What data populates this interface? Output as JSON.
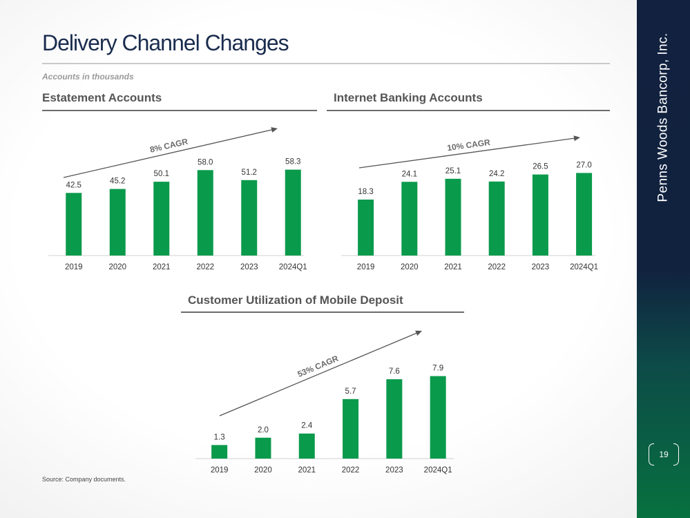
{
  "slide": {
    "title": "Delivery Channel Changes",
    "subtitle": "Accounts in thousands",
    "source": "Source: Company documents.",
    "company": "Penns Woods Bancorp, Inc.",
    "page_number": "19"
  },
  "colors": {
    "bar": "#0a9a4c",
    "navy": "#11213f",
    "green": "#07713f",
    "arrow": "#555555"
  },
  "chart_data": [
    {
      "id": "estatement",
      "type": "bar",
      "title": "Estatement Accounts",
      "categories": [
        "2019",
        "2020",
        "2021",
        "2022",
        "2023",
        "2024Q1"
      ],
      "values": [
        42.5,
        45.2,
        50.1,
        58.0,
        51.2,
        58.3
      ],
      "labels": [
        "42.5",
        "45.2",
        "50.1",
        "58.0",
        "51.2",
        "58.3"
      ],
      "ylim": [
        0,
        60
      ],
      "annotation": "8% CAGR"
    },
    {
      "id": "internet",
      "type": "bar",
      "title": "Internet Banking Accounts",
      "categories": [
        "2019",
        "2020",
        "2021",
        "2022",
        "2023",
        "2024Q1"
      ],
      "values": [
        18.3,
        24.1,
        25.1,
        24.2,
        26.5,
        27.0
      ],
      "labels": [
        "18.3",
        "24.1",
        "25.1",
        "24.2",
        "26.5",
        "27.0"
      ],
      "ylim": [
        0,
        28
      ],
      "annotation": "10% CAGR"
    },
    {
      "id": "mobile",
      "type": "bar",
      "title": "Customer Utilization of Mobile Deposit",
      "categories": [
        "2019",
        "2020",
        "2021",
        "2022",
        "2023",
        "2024Q1"
      ],
      "values": [
        1.3,
        2.0,
        2.4,
        5.7,
        7.6,
        7.9
      ],
      "labels": [
        "1.3",
        "2.0",
        "2.4",
        "5.7",
        "7.6",
        "7.9"
      ],
      "ylim": [
        0,
        8.2
      ],
      "annotation": "53% CAGR"
    }
  ]
}
